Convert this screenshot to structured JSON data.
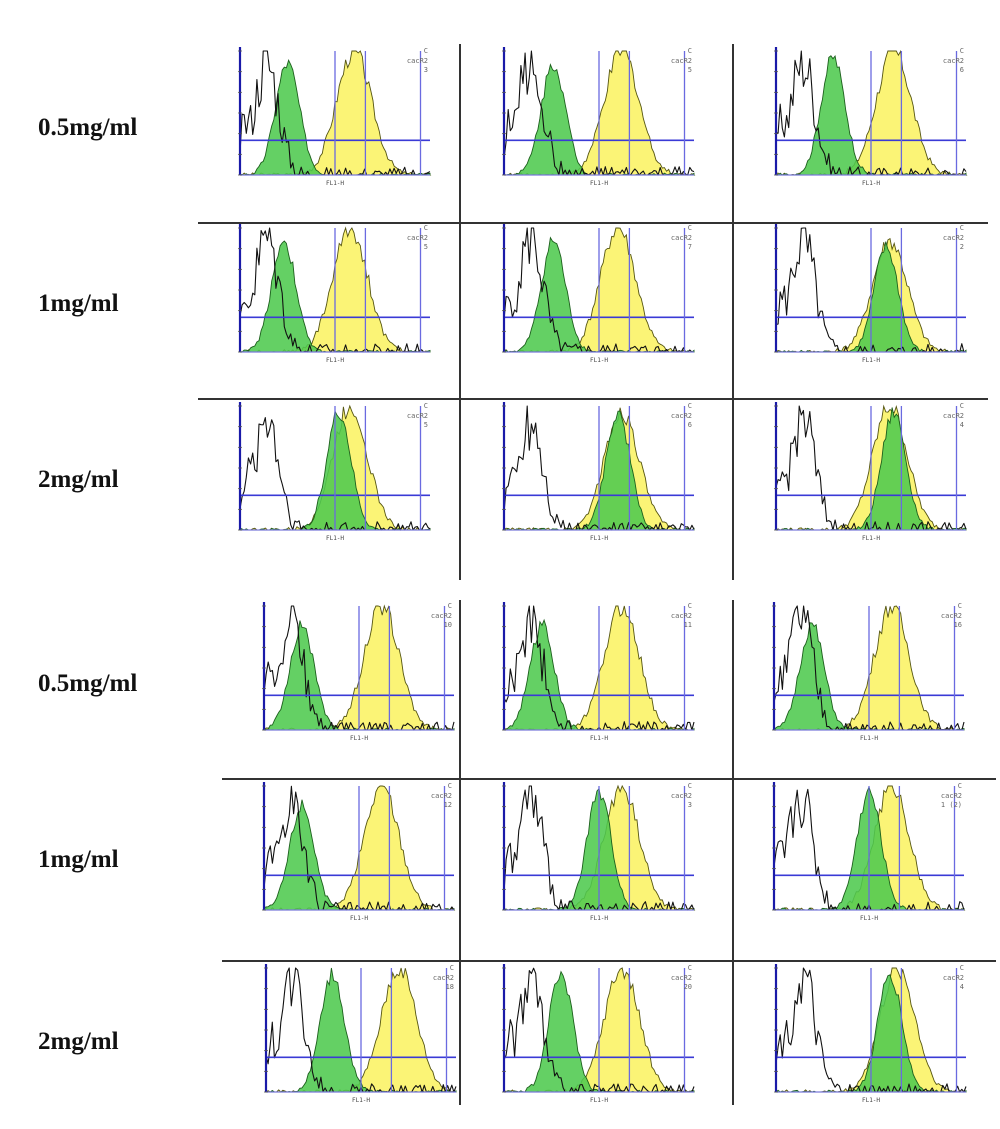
{
  "chart_data": {
    "type": "histogram-grid",
    "xlabel": "FL1-H",
    "colors": {
      "green": "#4fc94f",
      "yellow": "#fbf36a",
      "outline": "#111111",
      "axis": "#1a1aa8"
    },
    "rows": [
      {
        "label": "0.5mg/ml",
        "panels": [
          {
            "green_peak": 0.25,
            "yellow_peak": 0.6,
            "green_h": 0.9,
            "yellow_h": 1.0,
            "top": "C",
            "mid": "cacR2",
            "low": "3"
          },
          {
            "green_peak": 0.26,
            "yellow_peak": 0.62,
            "green_h": 0.9,
            "yellow_h": 1.0,
            "top": "C",
            "mid": "cacR2",
            "low": "5"
          },
          {
            "green_peak": 0.3,
            "yellow_peak": 0.62,
            "green_h": 0.95,
            "yellow_h": 1.0,
            "top": "C",
            "mid": "cacR2",
            "low": "6"
          }
        ]
      },
      {
        "label": "1mg/ml",
        "panels": [
          {
            "green_peak": 0.23,
            "yellow_peak": 0.58,
            "green_h": 0.9,
            "yellow_h": 1.0,
            "top": "C",
            "mid": "cacR2",
            "low": "5"
          },
          {
            "green_peak": 0.26,
            "yellow_peak": 0.6,
            "green_h": 0.9,
            "yellow_h": 1.0,
            "top": "C",
            "mid": "cacR2",
            "low": "7"
          },
          {
            "green_peak": 0.58,
            "yellow_peak": 0.6,
            "green_h": 0.85,
            "yellow_h": 0.9,
            "top": "C",
            "mid": "cacR2",
            "low": "2"
          }
        ]
      },
      {
        "label": "2mg/ml",
        "panels": [
          {
            "green_peak": 0.52,
            "yellow_peak": 0.58,
            "green_h": 0.95,
            "yellow_h": 1.0,
            "top": "C",
            "mid": "cacR2",
            "low": "5"
          },
          {
            "green_peak": 0.6,
            "yellow_peak": 0.62,
            "green_h": 0.95,
            "yellow_h": 0.95,
            "top": "C",
            "mid": "cacR2",
            "low": "6"
          },
          {
            "green_peak": 0.62,
            "yellow_peak": 0.6,
            "green_h": 0.95,
            "yellow_h": 1.0,
            "top": "C",
            "mid": "cacR2",
            "low": "4"
          }
        ]
      },
      {
        "label": "0.5mg/ml",
        "panels": [
          {
            "green_peak": 0.2,
            "yellow_peak": 0.62,
            "green_h": 0.85,
            "yellow_h": 1.0,
            "top": "C",
            "mid": "cacR2",
            "low": "10"
          },
          {
            "green_peak": 0.2,
            "yellow_peak": 0.62,
            "green_h": 0.85,
            "yellow_h": 1.0,
            "top": "C",
            "mid": "cacR2",
            "low": "11"
          },
          {
            "green_peak": 0.2,
            "yellow_peak": 0.62,
            "green_h": 0.85,
            "yellow_h": 1.0,
            "top": "C",
            "mid": "cacR2",
            "low": "16"
          }
        ]
      },
      {
        "label": "1mg/ml",
        "panels": [
          {
            "green_peak": 0.2,
            "yellow_peak": 0.62,
            "green_h": 0.85,
            "yellow_h": 1.0,
            "top": "C",
            "mid": "cacR2",
            "low": "12"
          },
          {
            "green_peak": 0.5,
            "yellow_peak": 0.62,
            "green_h": 0.95,
            "yellow_h": 1.0,
            "top": "C",
            "mid": "cacR2",
            "low": "3"
          },
          {
            "green_peak": 0.5,
            "yellow_peak": 0.62,
            "green_h": 0.95,
            "yellow_h": 1.0,
            "top": "C",
            "mid": "cacR2",
            "low": "1 (2)"
          }
        ]
      },
      {
        "label": "2mg/ml",
        "panels": [
          {
            "green_peak": 0.35,
            "yellow_peak": 0.7,
            "green_h": 0.95,
            "yellow_h": 1.0,
            "top": "C",
            "mid": "cacR2",
            "low": "18"
          },
          {
            "green_peak": 0.3,
            "yellow_peak": 0.62,
            "green_h": 0.95,
            "yellow_h": 1.0,
            "top": "C",
            "mid": "cacR2",
            "low": "20"
          },
          {
            "green_peak": 0.6,
            "yellow_peak": 0.64,
            "green_h": 0.95,
            "yellow_h": 1.0,
            "top": "C",
            "mid": "cacR2",
            "low": "4"
          }
        ]
      }
    ]
  }
}
